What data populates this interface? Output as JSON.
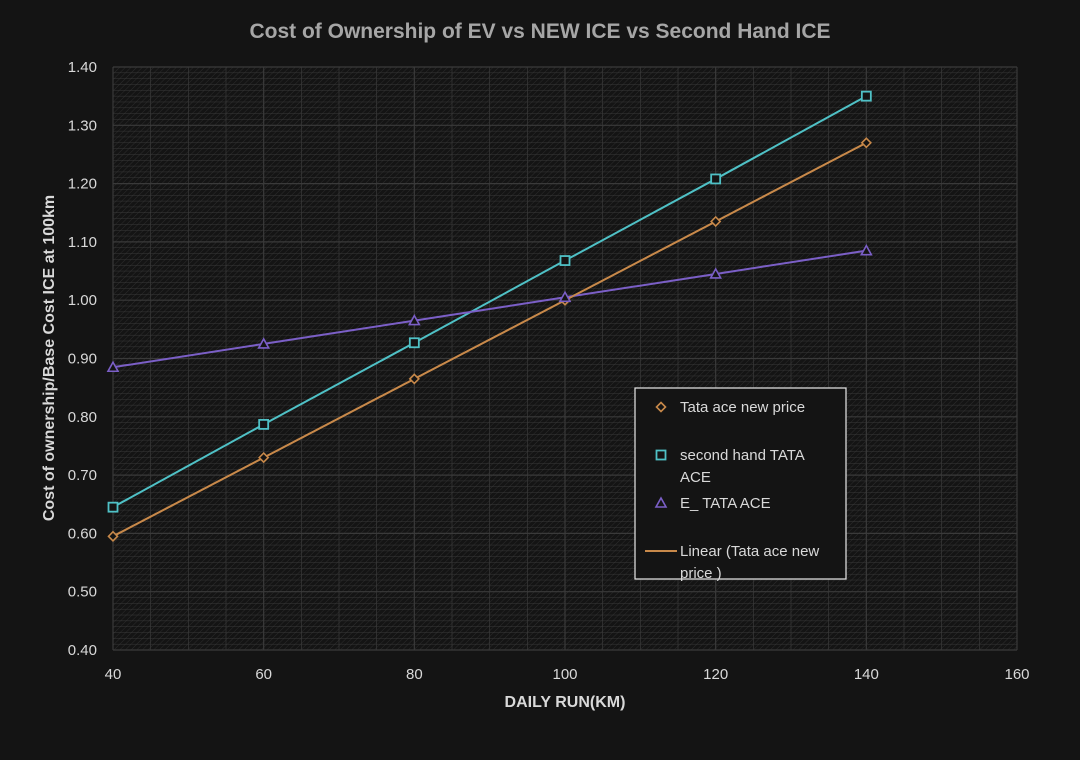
{
  "colors": {
    "background": "#141414",
    "grid": "#3a3a3a",
    "series_new": "#c8894a",
    "series_second_hand": "#4fc1c6",
    "series_ev": "#7b5fc7",
    "legend_border": "#e8e8e8"
  },
  "chart_data": {
    "type": "line",
    "title": "Cost of Ownership of EV vs NEW ICE vs Second Hand ICE",
    "xlabel": "DAILY RUN(KM)",
    "ylabel": "Cost of ownership/Base Cost ICE at 100km",
    "xlim": [
      40,
      160
    ],
    "ylim": [
      0.4,
      1.4
    ],
    "xticks": [
      "40",
      "60",
      "80",
      "100",
      "120",
      "140",
      "160"
    ],
    "yticks": [
      "0.40",
      "0.50",
      "0.60",
      "0.70",
      "0.80",
      "0.90",
      "1.00",
      "1.10",
      "1.20",
      "1.30",
      "1.40"
    ],
    "grid": true,
    "legend_position": "right-center",
    "series": [
      {
        "name": "Tata ace new price",
        "marker": "diamond",
        "color": "#c8894a",
        "x": [
          40,
          60,
          80,
          100,
          120,
          140
        ],
        "y": [
          0.595,
          0.73,
          0.865,
          1.0,
          1.135,
          1.27
        ]
      },
      {
        "name": "second hand TATA ACE",
        "marker": "square",
        "color": "#4fc1c6",
        "x": [
          40,
          60,
          80,
          100,
          120,
          140
        ],
        "y": [
          0.645,
          0.787,
          0.927,
          1.068,
          1.208,
          1.35
        ]
      },
      {
        "name": "E_ TATA ACE",
        "marker": "triangle",
        "color": "#7b5fc7",
        "x": [
          40,
          60,
          80,
          100,
          120,
          140
        ],
        "y": [
          0.885,
          0.925,
          0.965,
          1.005,
          1.045,
          1.085
        ]
      }
    ],
    "trendline": {
      "name": "Linear (Tata ace new price )",
      "color": "#c8894a",
      "x": [
        40,
        140
      ],
      "y": [
        0.595,
        1.27
      ]
    },
    "legend": [
      {
        "lines": [
          "Tata ace new price"
        ],
        "marker": "diamond",
        "color": "#c8894a"
      },
      {
        "lines": [
          "second hand TATA",
          "ACE"
        ],
        "marker": "square",
        "color": "#4fc1c6"
      },
      {
        "lines": [
          "E_ TATA ACE"
        ],
        "marker": "triangle",
        "color": "#7b5fc7"
      },
      {
        "lines": [
          "Linear (Tata ace new",
          "price )"
        ],
        "marker": "line",
        "color": "#c8894a"
      }
    ]
  }
}
